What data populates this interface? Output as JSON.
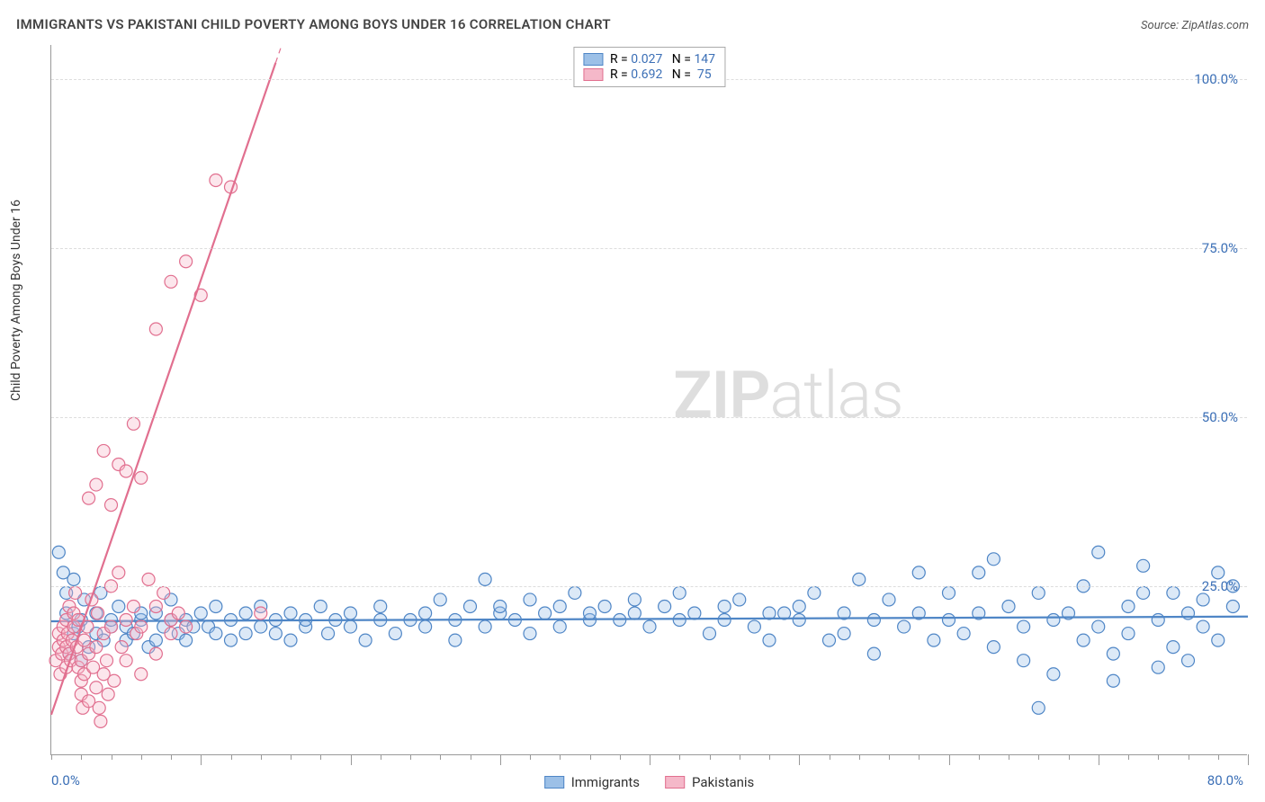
{
  "header": {
    "title": "IMMIGRANTS VS PAKISTANI CHILD POVERTY AMONG BOYS UNDER 16 CORRELATION CHART",
    "source_prefix": "Source: ",
    "source_name": "ZipAtlas.com"
  },
  "chart": {
    "type": "scatter",
    "y_axis_label": "Child Poverty Among Boys Under 16",
    "watermark_bold": "ZIP",
    "watermark_rest": "atlas",
    "xlim": [
      0,
      80
    ],
    "ylim": [
      0,
      105
    ],
    "y_ticks": [
      25,
      50,
      75,
      100
    ],
    "y_tick_labels": [
      "25.0%",
      "50.0%",
      "75.0%",
      "100.0%"
    ],
    "y_tick_color": "#3b6fb6",
    "x_minor_ticks": [
      0,
      2,
      4,
      6,
      8,
      10,
      12,
      14,
      16,
      18,
      20,
      22,
      24,
      26,
      28,
      30,
      32,
      34,
      36,
      38,
      40,
      42,
      44,
      46,
      48,
      50,
      52,
      54,
      56,
      58,
      60,
      62,
      64,
      66,
      68,
      70,
      72,
      74,
      76,
      78,
      80
    ],
    "x_major_ticks": [
      10,
      20,
      30,
      40,
      50,
      60,
      70,
      80
    ],
    "x_start_label": "0.0%",
    "x_end_label": "80.0%",
    "x_label_color": "#3b6fb6",
    "grid_color": "#dddddd",
    "axis_color": "#999999",
    "background_color": "#ffffff",
    "marker_radius": 7,
    "marker_stroke_width": 1.2,
    "marker_fill_opacity": 0.35,
    "trend_line_width": 2.2,
    "series": [
      {
        "name": "Immigrants",
        "stroke": "#4f86c6",
        "fill": "#9cc0e7",
        "R": "0.027",
        "N": "147",
        "trend": {
          "y_at_x0": 19.8,
          "y_at_xmax": 20.5
        },
        "points": [
          [
            0.5,
            30
          ],
          [
            0.8,
            27
          ],
          [
            1,
            24
          ],
          [
            1,
            21
          ],
          [
            1.2,
            15
          ],
          [
            1.5,
            18
          ],
          [
            1.5,
            26
          ],
          [
            1.8,
            19
          ],
          [
            2,
            20
          ],
          [
            2,
            14
          ],
          [
            2.2,
            23
          ],
          [
            2.5,
            16
          ],
          [
            3,
            21
          ],
          [
            3,
            18
          ],
          [
            3.3,
            24
          ],
          [
            3.5,
            17
          ],
          [
            4,
            19
          ],
          [
            4,
            20
          ],
          [
            4.5,
            22
          ],
          [
            5,
            19
          ],
          [
            5,
            17
          ],
          [
            5.5,
            18
          ],
          [
            6,
            20
          ],
          [
            6,
            21
          ],
          [
            6.5,
            16
          ],
          [
            7,
            21
          ],
          [
            7,
            17
          ],
          [
            7.5,
            19
          ],
          [
            8,
            20
          ],
          [
            8,
            23
          ],
          [
            8.5,
            18
          ],
          [
            9,
            17
          ],
          [
            9,
            20
          ],
          [
            9.5,
            19
          ],
          [
            10,
            21
          ],
          [
            10.5,
            19
          ],
          [
            11,
            22
          ],
          [
            11,
            18
          ],
          [
            12,
            20
          ],
          [
            12,
            17
          ],
          [
            13,
            18
          ],
          [
            13,
            21
          ],
          [
            14,
            19
          ],
          [
            14,
            22
          ],
          [
            15,
            20
          ],
          [
            15,
            18
          ],
          [
            16,
            21
          ],
          [
            16,
            17
          ],
          [
            17,
            19
          ],
          [
            17,
            20
          ],
          [
            18,
            22
          ],
          [
            18.5,
            18
          ],
          [
            19,
            20
          ],
          [
            20,
            21
          ],
          [
            20,
            19
          ],
          [
            21,
            17
          ],
          [
            22,
            20
          ],
          [
            22,
            22
          ],
          [
            23,
            18
          ],
          [
            24,
            20
          ],
          [
            25,
            21
          ],
          [
            25,
            19
          ],
          [
            26,
            23
          ],
          [
            27,
            20
          ],
          [
            27,
            17
          ],
          [
            28,
            22
          ],
          [
            29,
            26
          ],
          [
            29,
            19
          ],
          [
            30,
            21
          ],
          [
            30,
            22
          ],
          [
            31,
            20
          ],
          [
            32,
            23
          ],
          [
            32,
            18
          ],
          [
            33,
            21
          ],
          [
            34,
            22
          ],
          [
            34,
            19
          ],
          [
            35,
            24
          ],
          [
            36,
            20
          ],
          [
            36,
            21
          ],
          [
            37,
            22
          ],
          [
            38,
            20
          ],
          [
            39,
            21
          ],
          [
            39,
            23
          ],
          [
            40,
            19
          ],
          [
            41,
            22
          ],
          [
            42,
            20
          ],
          [
            42,
            24
          ],
          [
            43,
            21
          ],
          [
            44,
            18
          ],
          [
            45,
            22
          ],
          [
            45,
            20
          ],
          [
            46,
            23
          ],
          [
            47,
            19
          ],
          [
            48,
            21
          ],
          [
            48,
            17
          ],
          [
            49,
            21
          ],
          [
            50,
            20
          ],
          [
            50,
            22
          ],
          [
            51,
            24
          ],
          [
            52,
            17
          ],
          [
            53,
            21
          ],
          [
            53,
            18
          ],
          [
            54,
            26
          ],
          [
            55,
            20
          ],
          [
            55,
            15
          ],
          [
            56,
            23
          ],
          [
            57,
            19
          ],
          [
            58,
            21
          ],
          [
            58,
            27
          ],
          [
            59,
            17
          ],
          [
            60,
            20
          ],
          [
            60,
            24
          ],
          [
            61,
            18
          ],
          [
            62,
            27
          ],
          [
            62,
            21
          ],
          [
            63,
            29
          ],
          [
            63,
            16
          ],
          [
            64,
            22
          ],
          [
            65,
            19
          ],
          [
            65,
            14
          ],
          [
            66,
            24
          ],
          [
            67,
            20
          ],
          [
            67,
            12
          ],
          [
            68,
            21
          ],
          [
            69,
            17
          ],
          [
            69,
            25
          ],
          [
            70,
            19
          ],
          [
            70,
            30
          ],
          [
            71,
            15
          ],
          [
            72,
            22
          ],
          [
            72,
            18
          ],
          [
            73,
            24
          ],
          [
            74,
            20
          ],
          [
            74,
            13
          ],
          [
            75,
            24
          ],
          [
            75,
            16
          ],
          [
            76,
            21
          ],
          [
            77,
            23
          ],
          [
            77,
            19
          ],
          [
            78,
            27
          ],
          [
            78,
            17
          ],
          [
            79,
            22
          ],
          [
            79,
            25
          ],
          [
            66,
            7
          ],
          [
            71,
            11
          ],
          [
            73,
            28
          ],
          [
            76,
            14
          ]
        ]
      },
      {
        "name": "Pakistanis",
        "stroke": "#e16f8f",
        "fill": "#f5b8c9",
        "R": "0.692",
        "N": "75",
        "trend": {
          "y_at_x0": 6,
          "y_at_xmax": 520
        },
        "trend_dash_after_x": 15,
        "points": [
          [
            0.3,
            14
          ],
          [
            0.5,
            16
          ],
          [
            0.5,
            18
          ],
          [
            0.6,
            12
          ],
          [
            0.7,
            15
          ],
          [
            0.8,
            17
          ],
          [
            0.8,
            19
          ],
          [
            1,
            16
          ],
          [
            1,
            20
          ],
          [
            1,
            13
          ],
          [
            1.1,
            18
          ],
          [
            1.2,
            15
          ],
          [
            1.2,
            22
          ],
          [
            1.3,
            14
          ],
          [
            1.4,
            17
          ],
          [
            1.5,
            19
          ],
          [
            1.5,
            21
          ],
          [
            1.6,
            24
          ],
          [
            1.7,
            16
          ],
          [
            1.8,
            13
          ],
          [
            1.8,
            20
          ],
          [
            2,
            11
          ],
          [
            2,
            9
          ],
          [
            2,
            14
          ],
          [
            2.1,
            7
          ],
          [
            2.2,
            17
          ],
          [
            2.2,
            12
          ],
          [
            2.4,
            19
          ],
          [
            2.5,
            15
          ],
          [
            2.5,
            8
          ],
          [
            2.7,
            23
          ],
          [
            2.8,
            13
          ],
          [
            3,
            16
          ],
          [
            3,
            10
          ],
          [
            3.1,
            21
          ],
          [
            3.2,
            7
          ],
          [
            3.3,
            5
          ],
          [
            3.5,
            18
          ],
          [
            3.5,
            12
          ],
          [
            3.7,
            14
          ],
          [
            3.8,
            9
          ],
          [
            4,
            19
          ],
          [
            4,
            25
          ],
          [
            4.2,
            11
          ],
          [
            4.5,
            27
          ],
          [
            4.7,
            16
          ],
          [
            5,
            20
          ],
          [
            5,
            14
          ],
          [
            5.5,
            22
          ],
          [
            5.7,
            18
          ],
          [
            6,
            12
          ],
          [
            6,
            19
          ],
          [
            6.5,
            26
          ],
          [
            7,
            22
          ],
          [
            7,
            15
          ],
          [
            7.5,
            24
          ],
          [
            8,
            20
          ],
          [
            8,
            18
          ],
          [
            8.5,
            21
          ],
          [
            9,
            19
          ],
          [
            2.5,
            38
          ],
          [
            3,
            40
          ],
          [
            3.5,
            45
          ],
          [
            4,
            37
          ],
          [
            4.5,
            43
          ],
          [
            5,
            42
          ],
          [
            5.5,
            49
          ],
          [
            6,
            41
          ],
          [
            7,
            63
          ],
          [
            8,
            70
          ],
          [
            9,
            73
          ],
          [
            10,
            68
          ],
          [
            11,
            85
          ],
          [
            12,
            84
          ],
          [
            14,
            21
          ]
        ]
      }
    ],
    "legend_top": {
      "border_color": "#aaaaaa",
      "value_color": "#3b6fb6",
      "label_R": "R =",
      "label_N": "N ="
    },
    "legend_bottom": {
      "items": [
        "Immigrants",
        "Pakistanis"
      ]
    }
  }
}
